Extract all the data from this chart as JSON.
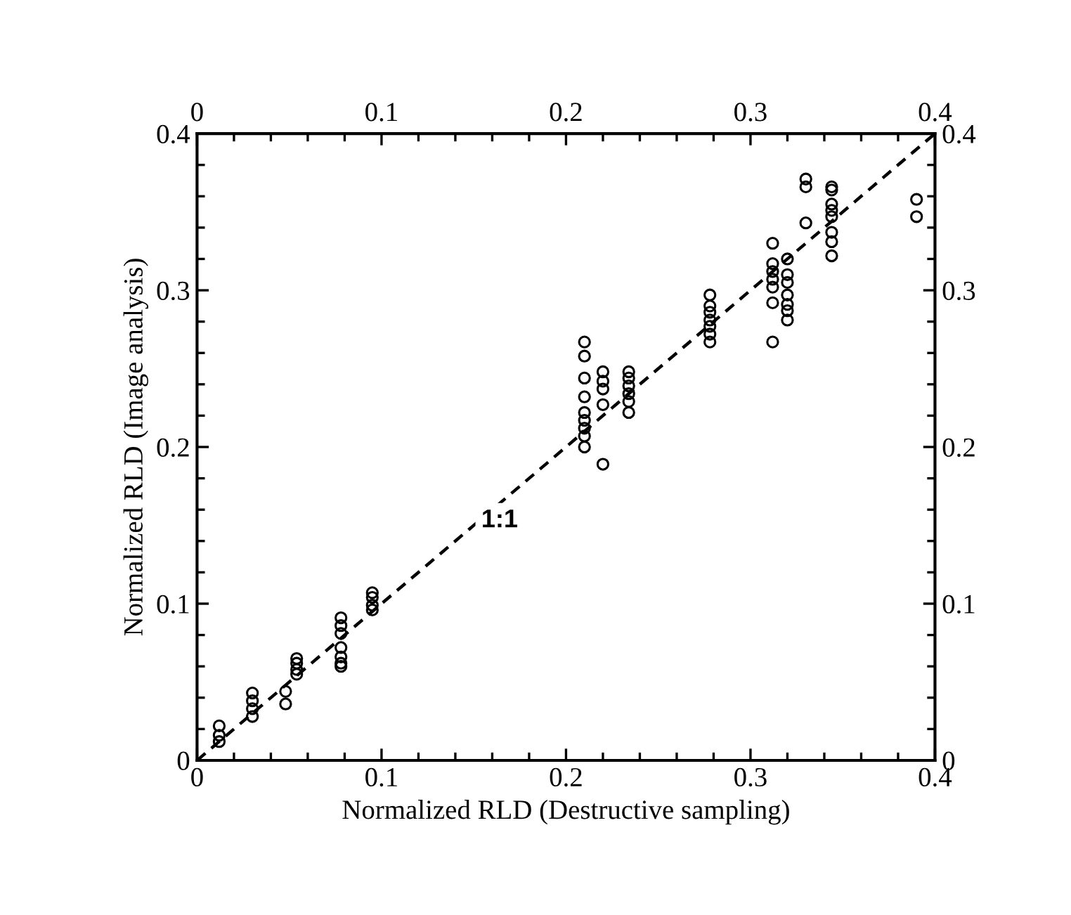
{
  "chart_data": {
    "type": "scatter",
    "xlabel": "Normalized RLD (Destructive sampling)",
    "ylabel": "Normalized RLD (Image analysis)",
    "xlim": [
      0,
      0.4
    ],
    "xticks": [
      0,
      0.1,
      0.2,
      0.3,
      0.4
    ],
    "ylim": [
      0,
      0.4
    ],
    "yticks": [
      0,
      0.1,
      0.2,
      0.3,
      0.4
    ],
    "x2lim": [
      0,
      0.4
    ],
    "x2ticks": [
      0,
      0.1,
      0.2,
      0.3,
      0.4
    ],
    "y2lim": [
      0,
      0.4
    ],
    "y2ticks": [
      0,
      0.1,
      0.2,
      0.3,
      0.4
    ],
    "marker": "circle",
    "grid": false,
    "legend": false,
    "annotations": [
      {
        "text": "1:1",
        "x": 0.164,
        "y": 0.153
      }
    ],
    "series": [
      {
        "color": "#000000",
        "x": [
          0.012,
          0.012,
          0.012,
          0.03,
          0.03,
          0.03,
          0.03,
          0.048,
          0.048,
          0.054,
          0.054,
          0.054,
          0.054,
          0.078,
          0.078,
          0.078,
          0.078,
          0.078,
          0.078,
          0.078,
          0.095,
          0.095,
          0.095,
          0.095,
          0.21,
          0.21,
          0.21,
          0.21,
          0.21,
          0.21,
          0.21,
          0.21,
          0.21,
          0.22,
          0.22,
          0.22,
          0.22,
          0.22,
          0.234,
          0.234,
          0.234,
          0.234,
          0.234,
          0.234,
          0.278,
          0.278,
          0.278,
          0.278,
          0.278,
          0.278,
          0.278,
          0.312,
          0.312,
          0.312,
          0.312,
          0.312,
          0.312,
          0.312,
          0.32,
          0.32,
          0.32,
          0.32,
          0.32,
          0.32,
          0.32,
          0.33,
          0.33,
          0.33,
          0.344,
          0.344,
          0.344,
          0.344,
          0.344,
          0.344,
          0.344,
          0.344,
          0.39,
          0.39
        ],
        "values": [
          0.022,
          0.016,
          0.012,
          0.043,
          0.038,
          0.033,
          0.028,
          0.044,
          0.036,
          0.065,
          0.062,
          0.058,
          0.055,
          0.091,
          0.086,
          0.081,
          0.072,
          0.066,
          0.062,
          0.06,
          0.107,
          0.104,
          0.099,
          0.096,
          0.267,
          0.258,
          0.244,
          0.232,
          0.222,
          0.217,
          0.212,
          0.207,
          0.2,
          0.248,
          0.242,
          0.237,
          0.227,
          0.189,
          0.248,
          0.244,
          0.239,
          0.234,
          0.229,
          0.222,
          0.297,
          0.29,
          0.286,
          0.281,
          0.277,
          0.272,
          0.267,
          0.33,
          0.317,
          0.312,
          0.307,
          0.302,
          0.292,
          0.267,
          0.32,
          0.31,
          0.305,
          0.297,
          0.291,
          0.287,
          0.281,
          0.371,
          0.366,
          0.343,
          0.366,
          0.364,
          0.355,
          0.351,
          0.347,
          0.337,
          0.331,
          0.322,
          0.358,
          0.347
        ]
      },
      {
        "type": "line",
        "color": "#000000",
        "line_style": "dashed",
        "marker": "none",
        "x": [
          0,
          0.4
        ],
        "values": [
          0,
          0.4
        ]
      }
    ]
  }
}
